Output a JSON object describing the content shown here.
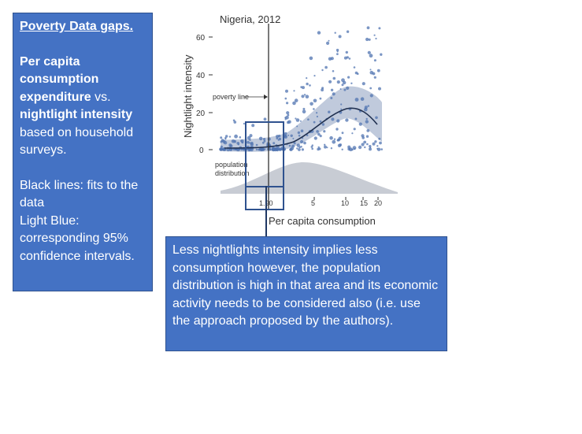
{
  "left_panel": {
    "title": "Poverty Data gaps.",
    "line1_bold": "Per capita consumption expenditure",
    "line1_rest": " vs.",
    "line2_bold": "nightlight intensity",
    "line2_rest": " based on household surveys.",
    "line3": "Black lines: fits to the data",
    "line4": "Light Blue: corresponding 95% confidence intervals."
  },
  "note": {
    "text": "Less nightlights intensity implies less consumption however,  the population distribution is high in that area and its economic activity needs to be considered also (i.e. use the approach proposed by the authors)."
  },
  "chart_data": {
    "type": "scatter",
    "title": "Nigeria, 2012",
    "xlabel": "Per capita consumption",
    "ylabel": "Nightlight intensity",
    "x_ticks": [
      "1.90",
      "5",
      "10",
      "15",
      "20"
    ],
    "y_ticks": [
      "0",
      "20",
      "40",
      "60"
    ],
    "ylim": [
      0,
      65
    ],
    "annotations": {
      "poverty_line": "poverty line",
      "population_distribution": "population distribution"
    },
    "colors": {
      "points": "#4f73b0",
      "ci_band": "#b9c4d8",
      "fit_line": "#1f2f4f",
      "population": "#c8ccd4"
    }
  }
}
